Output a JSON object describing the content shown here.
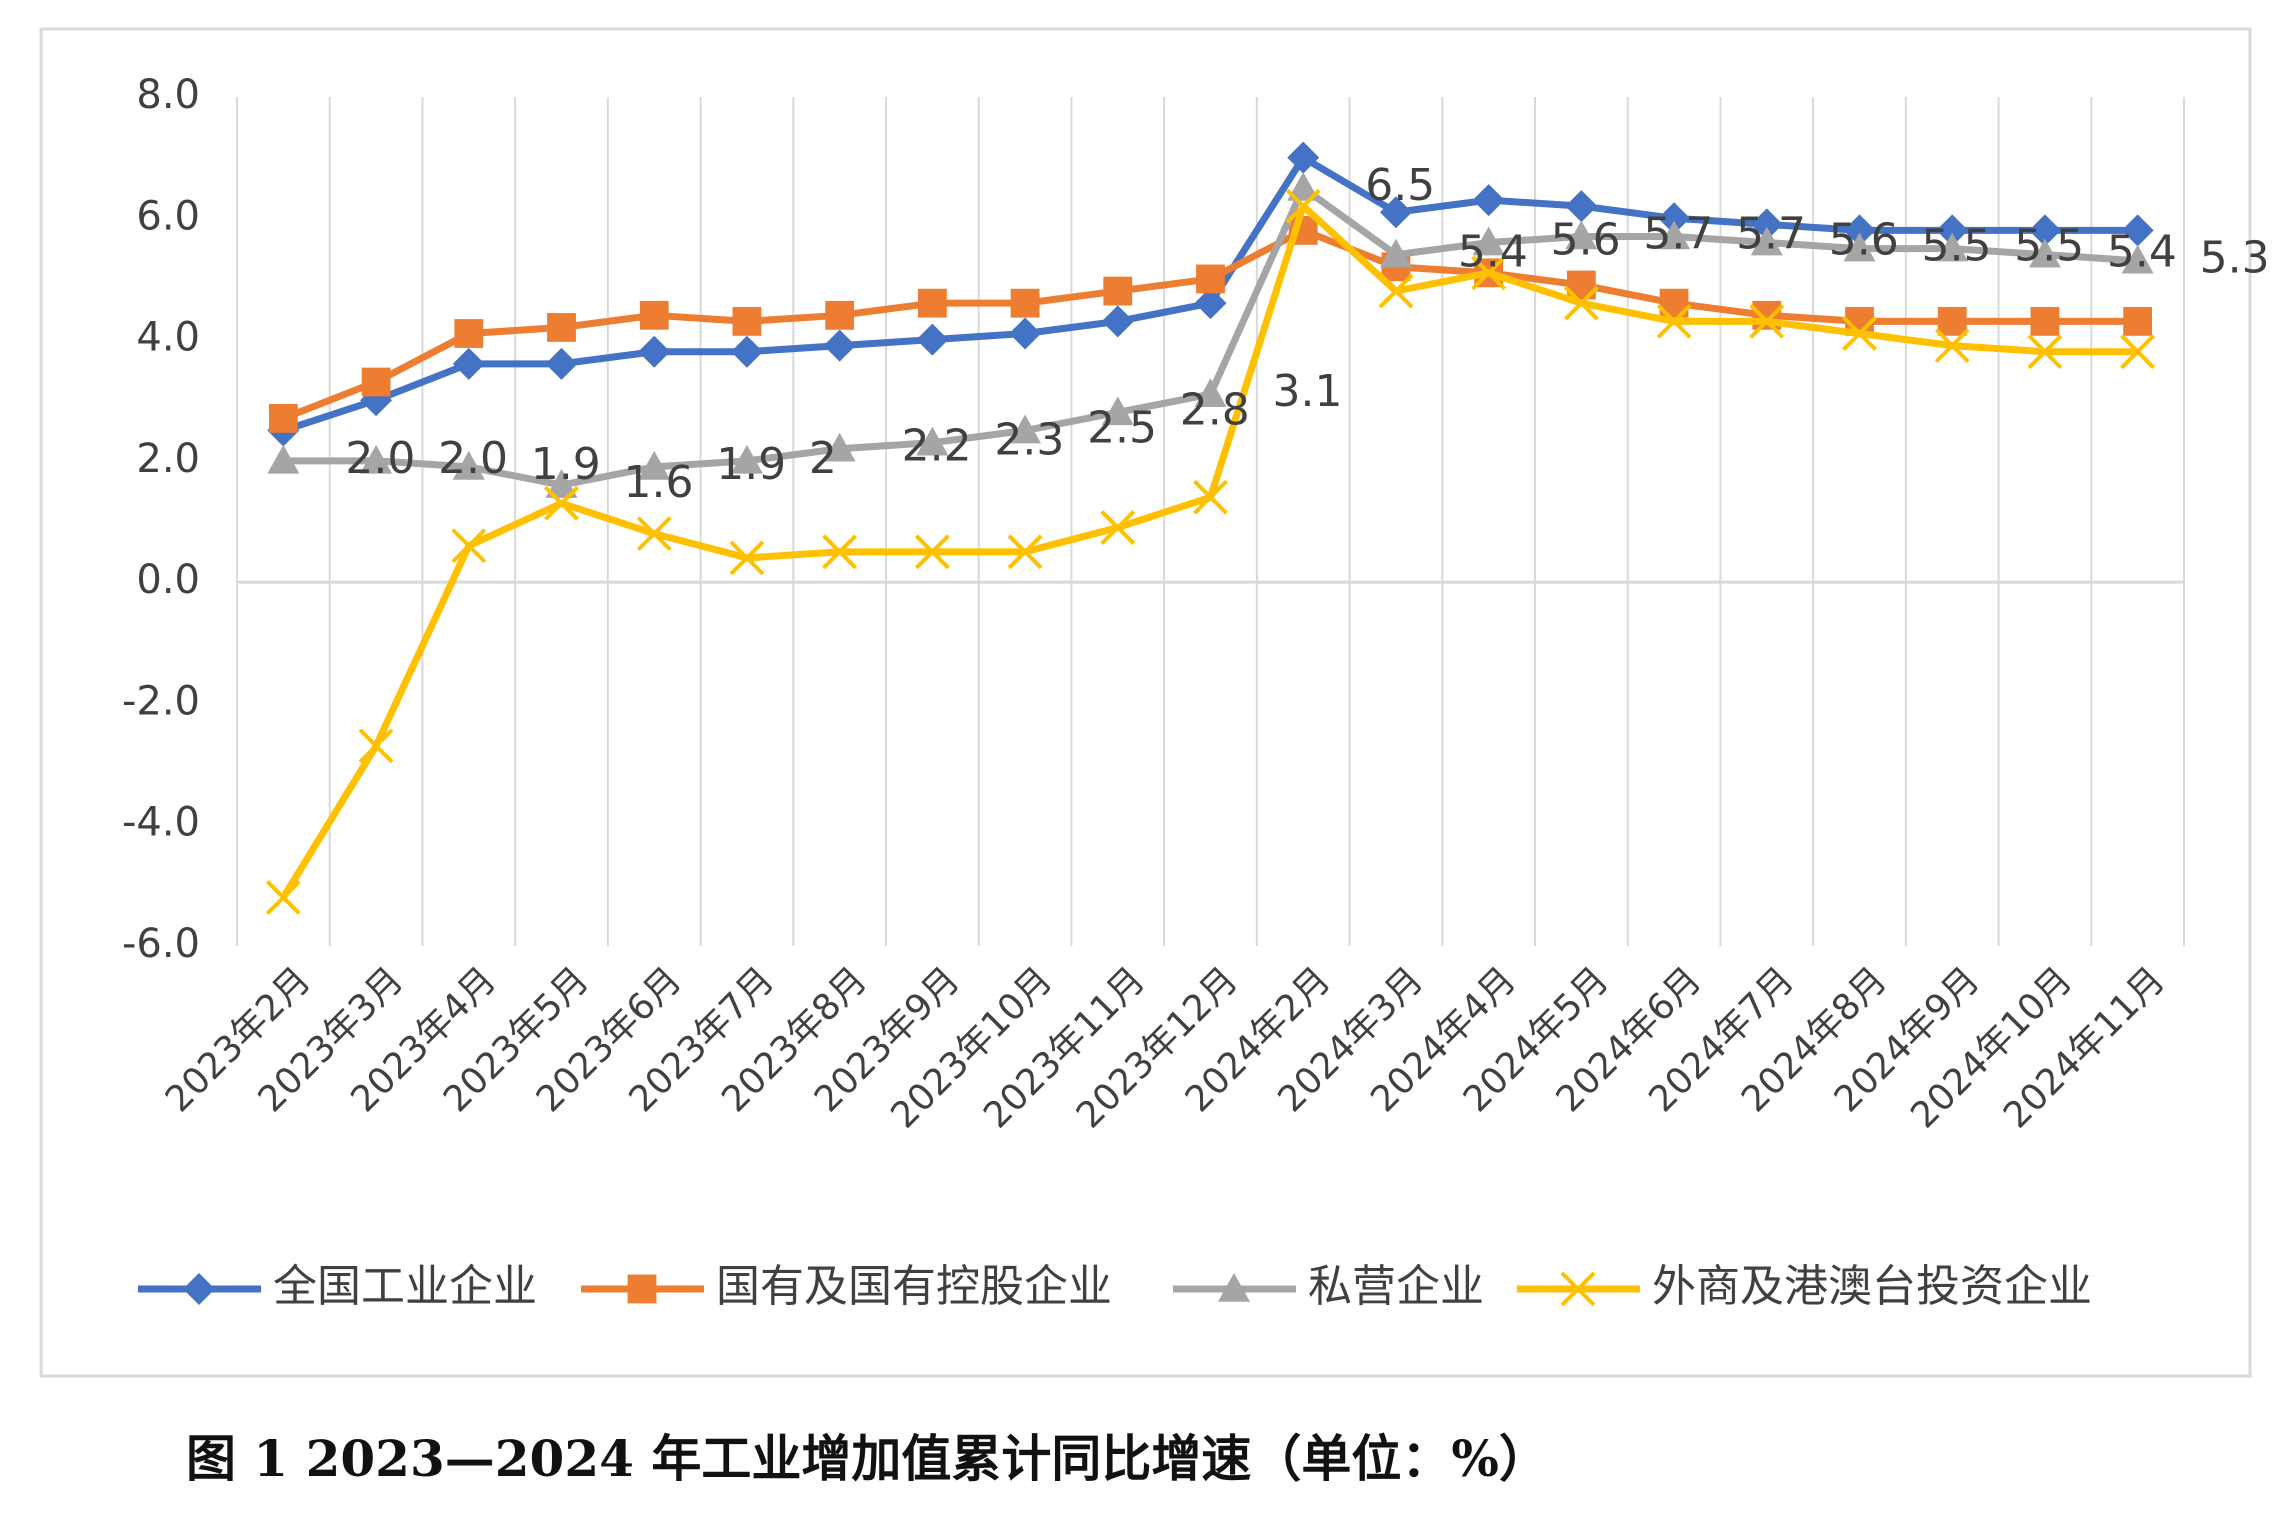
{
  "chart_data": {
    "type": "line",
    "categories": [
      "2023年2月",
      "2023年3月",
      "2023年4月",
      "2023年5月",
      "2023年6月",
      "2023年7月",
      "2023年8月",
      "2023年9月",
      "2023年10月",
      "2023年11月",
      "2023年12月",
      "2024年2月",
      "2024年3月",
      "2024年4月",
      "2024年5月",
      "2024年6月",
      "2024年7月",
      "2024年8月",
      "2024年9月",
      "2024年10月",
      "2024年11月"
    ],
    "series": [
      {
        "name": "全国工业企业",
        "color": "#4472c4",
        "marker": "diamond",
        "values": [
          2.5,
          3.0,
          3.6,
          3.6,
          3.8,
          3.8,
          3.9,
          4.0,
          4.1,
          4.3,
          4.6,
          7.0,
          6.1,
          6.3,
          6.2,
          6.0,
          5.9,
          5.8,
          5.8,
          5.8,
          5.8
        ]
      },
      {
        "name": "国有及国有控股企业",
        "color": "#ed7d31",
        "marker": "square",
        "values": [
          2.7,
          3.3,
          4.1,
          4.2,
          4.4,
          4.3,
          4.4,
          4.6,
          4.6,
          4.8,
          5.0,
          5.8,
          5.2,
          5.1,
          4.9,
          4.6,
          4.4,
          4.3,
          4.3,
          4.3,
          4.3
        ]
      },
      {
        "name": "私营企业",
        "color": "#a5a5a5",
        "marker": "triangle",
        "values": [
          2.0,
          2.0,
          1.9,
          1.6,
          1.9,
          2,
          2.2,
          2.3,
          2.5,
          2.8,
          3.1,
          6.5,
          5.4,
          5.6,
          5.7,
          5.7,
          5.6,
          5.5,
          5.5,
          5.4,
          5.3
        ],
        "value_labels": [
          "2.0",
          "2.0",
          "1.9",
          "1.6",
          "1.9",
          "2",
          "2.2",
          "2.3",
          "2.5",
          "2.8",
          "3.1",
          "6.5",
          "5.4",
          "5.6",
          "5.7",
          "5.7",
          "5.6",
          "5.5",
          "5.5",
          "5.4",
          "5.3"
        ]
      },
      {
        "name": "外商及港澳台投资企业",
        "color": "#ffc000",
        "marker": "x",
        "values": [
          -5.2,
          -2.7,
          0.6,
          1.3,
          0.8,
          0.4,
          0.5,
          0.5,
          0.5,
          0.9,
          1.4,
          6.2,
          4.8,
          5.1,
          4.6,
          4.3,
          4.3,
          4.1,
          3.9,
          3.8,
          3.8
        ]
      }
    ],
    "ylim": [
      -6,
      8
    ],
    "yticks": [
      {
        "value": -6,
        "label": "-6.0"
      },
      {
        "value": -4,
        "label": "-4.0"
      },
      {
        "value": -2,
        "label": "-2.0"
      },
      {
        "value": 0,
        "label": "0.0"
      },
      {
        "value": 2,
        "label": "2.0"
      },
      {
        "value": 4,
        "label": "4.0"
      },
      {
        "value": 6,
        "label": "6.0"
      },
      {
        "value": 8,
        "label": "8.0"
      }
    ],
    "legend": "bottom",
    "caption": "图 1 2023—2024 年工业增加值累计同比增速（单位：%）"
  }
}
